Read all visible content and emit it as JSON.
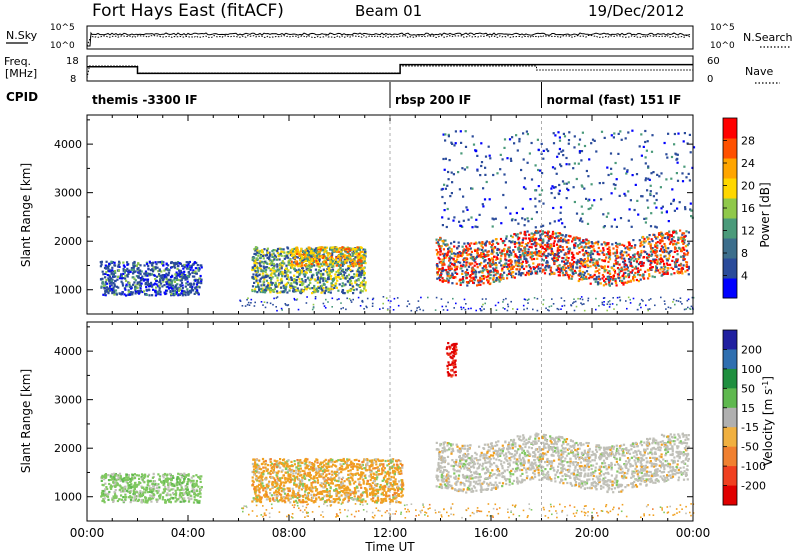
{
  "header": {
    "station": "Fort Hays East (fitACF)",
    "beam": "Beam 01",
    "date": "19/Dec/2012"
  },
  "top_panels": {
    "nsky_label": "N.Sky",
    "nsearch_label": "N.Search",
    "freq_label_1": "Freq.",
    "freq_label_2": "[MHz]",
    "nave_label": "Nave",
    "cpid_label": "CPID",
    "nsky_ticks": [
      "10^5",
      "10^0"
    ],
    "nsearch_ticks": [
      "10^5",
      "10^0"
    ],
    "freq_ticks": [
      "18",
      "8"
    ],
    "nave_ticks": [
      "60",
      "0"
    ]
  },
  "cpid_segments": [
    {
      "label": "themis -3300 IF",
      "start_hour": 0,
      "end_hour": 12
    },
    {
      "label": "rbsp 200 IF",
      "start_hour": 12,
      "end_hour": 18
    },
    {
      "label": "normal (fast) 151 IF",
      "start_hour": 18,
      "end_hour": 24
    }
  ],
  "freq_trace": {
    "unit": "MHz",
    "points": [
      [
        0,
        14
      ],
      [
        0.1,
        14
      ],
      [
        2,
        14
      ],
      [
        2,
        11
      ],
      [
        12.4,
        11
      ],
      [
        12.4,
        15
      ],
      [
        24,
        15
      ]
    ]
  },
  "colors": {
    "power": [
      "#0000ff",
      "#2a4b9a",
      "#3c6e8c",
      "#4a9a7a",
      "#8fc84a",
      "#ffd700",
      "#ffa500",
      "#ff5000",
      "#ff0000"
    ],
    "velocity": [
      "#2020a0",
      "#2f6fb0",
      "#1f8f3f",
      "#5fb84f",
      "#b0b0b0",
      "#f0b040",
      "#f08030",
      "#f04020",
      "#e00000"
    ],
    "velocity_gray": "#c0c0b8",
    "velocity_orange": "#f0a020",
    "velocity_green": "#80c860"
  },
  "chart_data": [
    {
      "type": "heatmap",
      "name": "power",
      "xlabel": "",
      "ylabel": "Slant Range [km]",
      "xlim": [
        0,
        24
      ],
      "ylim": [
        500,
        4600
      ],
      "yticks": [
        1000,
        2000,
        3000,
        4000
      ],
      "colorbar": {
        "label": "Power [dB]",
        "ticks": [
          4,
          8,
          12,
          16,
          20,
          24,
          28
        ],
        "range": [
          0,
          32
        ]
      },
      "echo_regions": [
        {
          "t_start": 0.5,
          "t_end": 4.5,
          "r_min": 900,
          "r_max": 1600,
          "level": "low"
        },
        {
          "t_start": 6.5,
          "t_end": 11.0,
          "r_min": 950,
          "r_max": 1900,
          "level": "mixed"
        },
        {
          "t_start": 8.0,
          "t_end": 11.0,
          "r_min": 1500,
          "r_max": 1900,
          "level": "high"
        },
        {
          "t_start": 13.8,
          "t_end": 23.8,
          "r_min": 1100,
          "r_max": 2300,
          "level": "strong_band"
        },
        {
          "t_start": 14.0,
          "t_end": 24.0,
          "r_min": 2300,
          "r_max": 4300,
          "level": "sparse"
        }
      ]
    },
    {
      "type": "heatmap",
      "name": "velocity",
      "xlabel": "Time UT",
      "ylabel": "Slant Range [km]",
      "xlim": [
        0,
        24
      ],
      "ylim": [
        500,
        4600
      ],
      "xticks": [
        "00:00",
        "04:00",
        "08:00",
        "12:00",
        "16:00",
        "20:00",
        "00:00"
      ],
      "yticks": [
        1000,
        2000,
        3000,
        4000
      ],
      "colorbar": {
        "label": "Velocity [m s^-1]",
        "ticks": [
          200,
          100,
          50,
          15,
          -15,
          -50,
          -100,
          -200
        ]
      },
      "echo_regions": [
        {
          "t_start": 0.5,
          "t_end": 4.5,
          "r_min": 900,
          "r_max": 1500,
          "sign": "small_positive"
        },
        {
          "t_start": 6.5,
          "t_end": 12.5,
          "r_min": 900,
          "r_max": 1800,
          "sign": "negative"
        },
        {
          "t_start": 13.8,
          "t_end": 23.8,
          "r_min": 1100,
          "r_max": 2400,
          "sign": "near_zero"
        },
        {
          "t_start": 14.2,
          "t_end": 14.6,
          "r_min": 3500,
          "r_max": 4200,
          "sign": "strong_negative"
        }
      ]
    }
  ]
}
